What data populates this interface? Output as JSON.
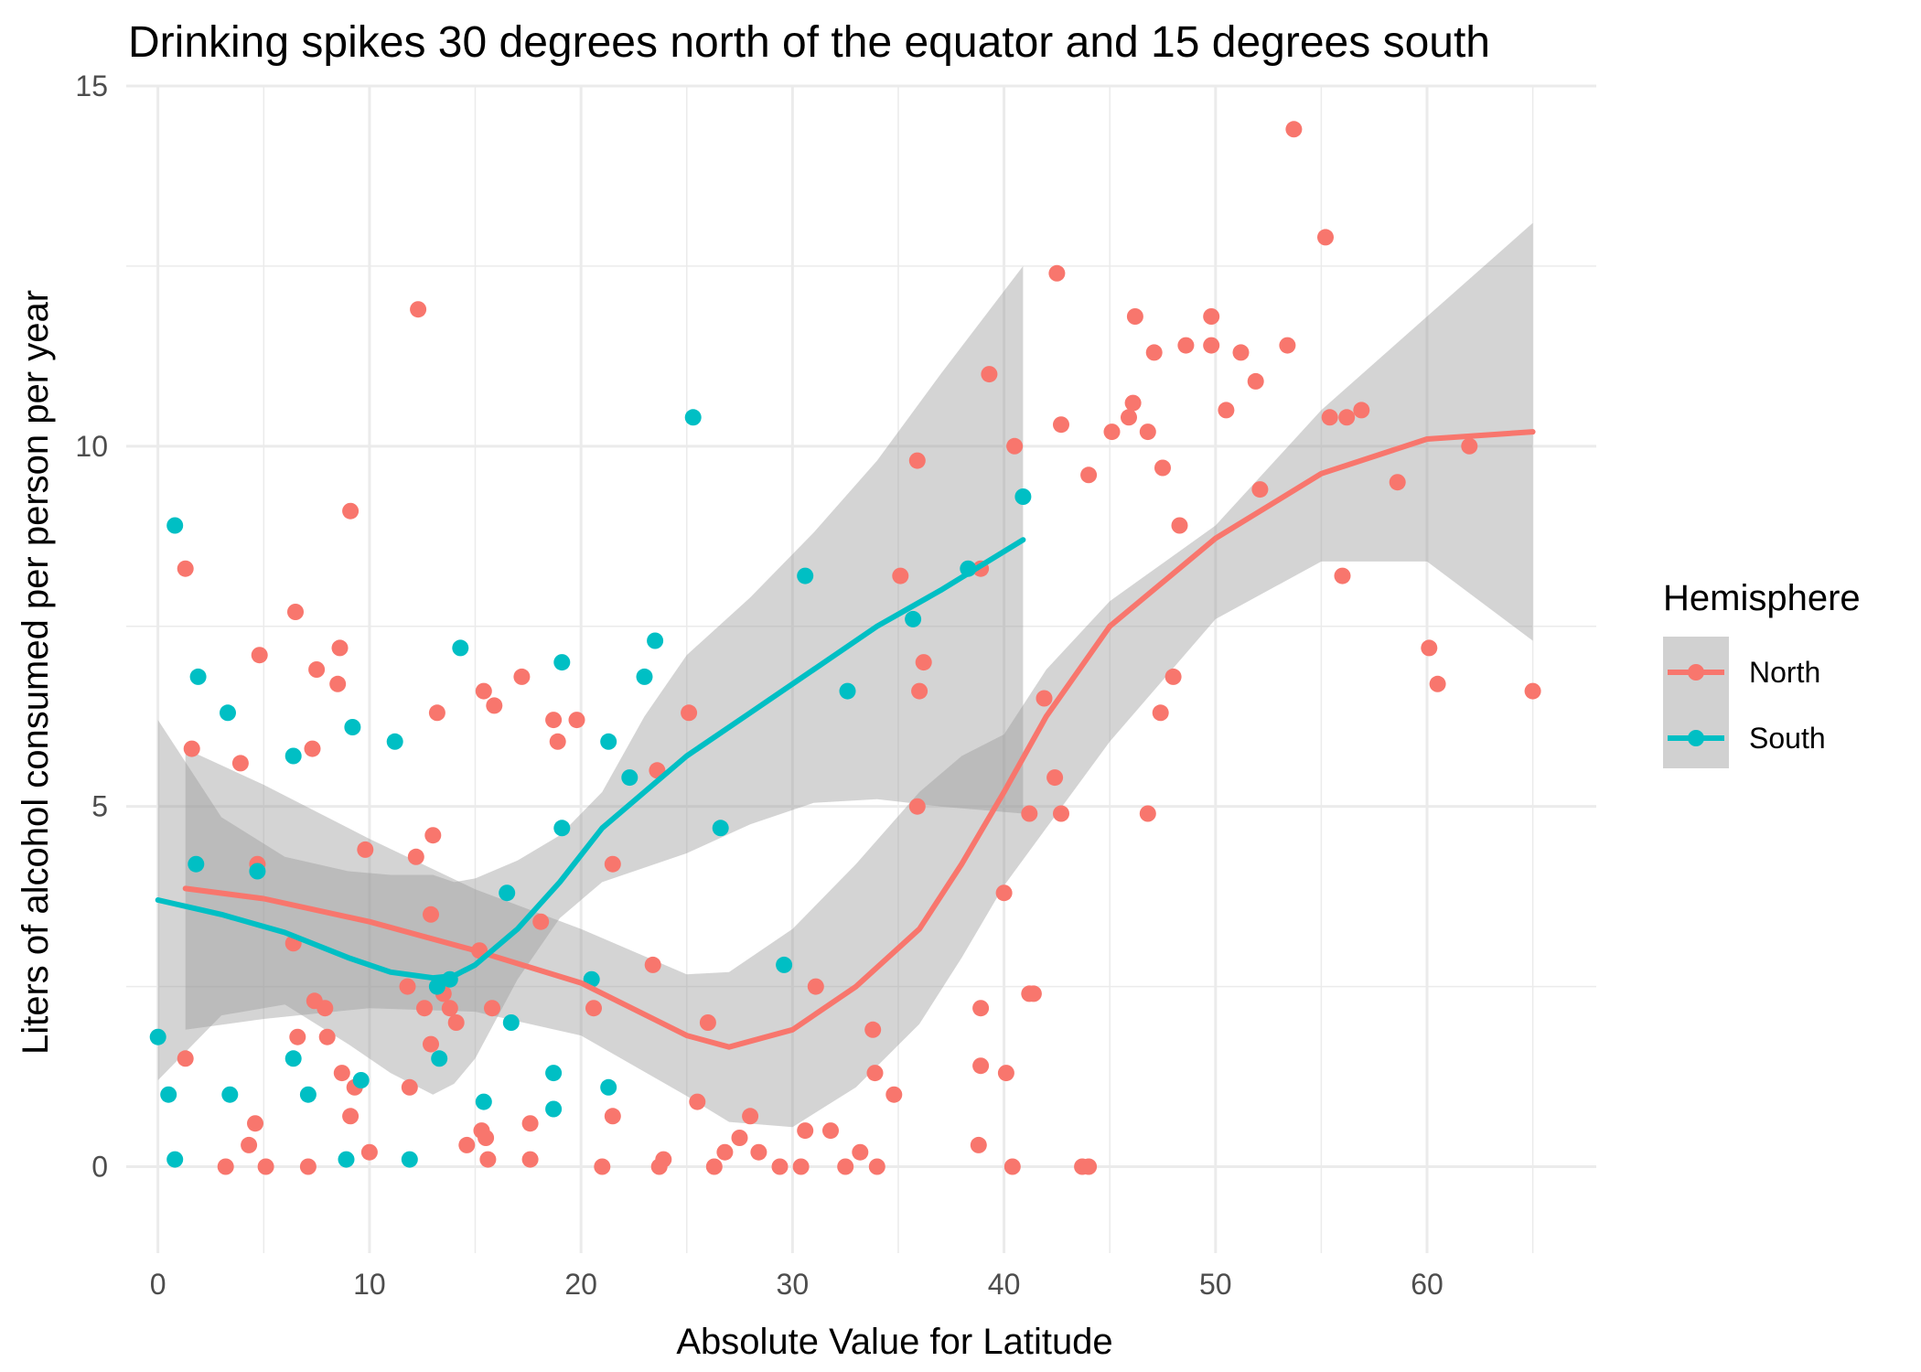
{
  "chart_data": {
    "type": "scatter",
    "title": "Drinking spikes 30 degrees north of the equator and 15 degrees south",
    "xlabel": "Absolute Value for Latitude",
    "ylabel": "Liters of alcohol consumed per person per year",
    "xlim": [
      -1.5,
      68
    ],
    "ylim": [
      -1.2,
      15.0
    ],
    "x_ticks": [
      0,
      10,
      20,
      30,
      40,
      50,
      60
    ],
    "y_ticks": [
      0,
      5,
      10,
      15
    ],
    "grid": true,
    "legend": {
      "title": "Hemisphere",
      "placement": "right",
      "entries": [
        "North",
        "South"
      ]
    },
    "colors": {
      "North": "#F8766D",
      "South": "#00BFC4",
      "ribbon": "#999999",
      "grid": "#ebebeb"
    },
    "series": [
      {
        "name": "North",
        "points": [
          [
            1.3,
            1.5
          ],
          [
            1.3,
            8.3
          ],
          [
            1.6,
            5.8
          ],
          [
            3.2,
            0.0
          ],
          [
            3.9,
            5.6
          ],
          [
            4.3,
            0.3
          ],
          [
            4.6,
            0.6
          ],
          [
            4.7,
            4.2
          ],
          [
            4.8,
            7.1
          ],
          [
            5.1,
            0.0
          ],
          [
            6.4,
            3.1
          ],
          [
            6.5,
            7.7
          ],
          [
            6.6,
            1.8
          ],
          [
            7.1,
            0.0
          ],
          [
            7.3,
            5.8
          ],
          [
            7.4,
            2.3
          ],
          [
            7.5,
            6.9
          ],
          [
            7.9,
            2.2
          ],
          [
            8.0,
            1.8
          ],
          [
            8.5,
            6.7
          ],
          [
            8.6,
            7.2
          ],
          [
            8.7,
            1.3
          ],
          [
            9.1,
            9.1
          ],
          [
            9.1,
            0.7
          ],
          [
            9.3,
            1.1
          ],
          [
            9.8,
            4.4
          ],
          [
            10.0,
            0.2
          ],
          [
            11.8,
            2.5
          ],
          [
            11.9,
            1.1
          ],
          [
            12.2,
            4.3
          ],
          [
            12.3,
            11.9
          ],
          [
            12.6,
            2.2
          ],
          [
            12.9,
            3.5
          ],
          [
            12.9,
            1.7
          ],
          [
            13.0,
            4.6
          ],
          [
            13.2,
            6.3
          ],
          [
            13.5,
            2.4
          ],
          [
            13.8,
            2.2
          ],
          [
            14.1,
            2.0
          ],
          [
            14.6,
            0.3
          ],
          [
            15.2,
            3.0
          ],
          [
            15.3,
            0.5
          ],
          [
            15.4,
            6.6
          ],
          [
            15.5,
            0.4
          ],
          [
            15.6,
            0.1
          ],
          [
            15.8,
            2.2
          ],
          [
            15.9,
            6.4
          ],
          [
            17.2,
            6.8
          ],
          [
            17.6,
            0.1
          ],
          [
            17.6,
            0.6
          ],
          [
            18.1,
            3.4
          ],
          [
            18.7,
            6.2
          ],
          [
            18.9,
            5.9
          ],
          [
            19.8,
            6.2
          ],
          [
            20.6,
            2.2
          ],
          [
            21.0,
            0.0
          ],
          [
            21.5,
            4.2
          ],
          [
            21.5,
            0.7
          ],
          [
            23.4,
            2.8
          ],
          [
            23.6,
            5.5
          ],
          [
            23.7,
            0.0
          ],
          [
            23.9,
            0.1
          ],
          [
            25.1,
            6.3
          ],
          [
            25.5,
            0.9
          ],
          [
            26.0,
            2.0
          ],
          [
            26.3,
            0.0
          ],
          [
            26.8,
            0.2
          ],
          [
            27.5,
            0.4
          ],
          [
            28.0,
            0.7
          ],
          [
            28.4,
            0.2
          ],
          [
            29.4,
            0.0
          ],
          [
            30.4,
            0.0
          ],
          [
            30.6,
            0.5
          ],
          [
            31.1,
            2.5
          ],
          [
            31.8,
            0.5
          ],
          [
            32.5,
            0.0
          ],
          [
            33.2,
            0.2
          ],
          [
            33.8,
            1.9
          ],
          [
            33.9,
            1.3
          ],
          [
            34.0,
            0.0
          ],
          [
            34.8,
            1.0
          ],
          [
            35.1,
            8.2
          ],
          [
            35.9,
            5.0
          ],
          [
            35.9,
            9.8
          ],
          [
            36.0,
            6.6
          ],
          [
            36.2,
            7.0
          ],
          [
            38.8,
            0.3
          ],
          [
            38.9,
            1.4
          ],
          [
            38.9,
            2.2
          ],
          [
            38.9,
            8.3
          ],
          [
            39.3,
            11.0
          ],
          [
            40.0,
            3.8
          ],
          [
            40.1,
            1.3
          ],
          [
            40.4,
            0.0
          ],
          [
            40.5,
            10.0
          ],
          [
            41.2,
            4.9
          ],
          [
            41.2,
            2.4
          ],
          [
            41.4,
            2.4
          ],
          [
            41.9,
            6.5
          ],
          [
            42.4,
            5.4
          ],
          [
            42.5,
            12.4
          ],
          [
            42.7,
            10.3
          ],
          [
            42.7,
            4.9
          ],
          [
            43.7,
            0.0
          ],
          [
            44.0,
            0.0
          ],
          [
            44.0,
            9.6
          ],
          [
            45.1,
            10.2
          ],
          [
            45.9,
            10.4
          ],
          [
            46.1,
            10.6
          ],
          [
            46.2,
            11.8
          ],
          [
            46.8,
            4.9
          ],
          [
            46.8,
            10.2
          ],
          [
            47.1,
            11.3
          ],
          [
            47.4,
            6.3
          ],
          [
            47.5,
            9.7
          ],
          [
            48.0,
            6.8
          ],
          [
            48.3,
            8.9
          ],
          [
            48.6,
            11.4
          ],
          [
            49.8,
            11.8
          ],
          [
            49.8,
            11.4
          ],
          [
            50.5,
            10.5
          ],
          [
            51.2,
            11.3
          ],
          [
            51.9,
            10.9
          ],
          [
            52.1,
            9.4
          ],
          [
            53.4,
            11.4
          ],
          [
            53.7,
            14.4
          ],
          [
            55.2,
            12.9
          ],
          [
            55.4,
            10.4
          ],
          [
            56.0,
            8.2
          ],
          [
            56.2,
            10.4
          ],
          [
            56.9,
            10.5
          ],
          [
            58.6,
            9.5
          ],
          [
            60.1,
            7.2
          ],
          [
            60.5,
            6.7
          ],
          [
            62.0,
            10.0
          ],
          [
            65.0,
            6.6
          ]
        ],
        "smooth": {
          "x": [
            1.3,
            5,
            10,
            15,
            20,
            25,
            27,
            30,
            33,
            36,
            38,
            40,
            42,
            45,
            50,
            55,
            60,
            65
          ],
          "y": [
            3.86,
            3.72,
            3.4,
            3.0,
            2.55,
            1.82,
            1.66,
            1.9,
            2.5,
            3.3,
            4.2,
            5.2,
            6.25,
            7.5,
            8.72,
            9.62,
            10.1,
            10.2
          ],
          "lower": [
            1.9,
            2.05,
            2.2,
            2.15,
            1.82,
            0.98,
            0.62,
            0.55,
            1.1,
            1.98,
            2.9,
            3.9,
            4.7,
            5.9,
            7.6,
            8.4,
            8.4,
            7.3
          ],
          "upper": [
            5.8,
            5.3,
            4.55,
            3.85,
            3.3,
            2.67,
            2.7,
            3.3,
            4.2,
            5.2,
            5.7,
            6.0,
            6.9,
            7.85,
            8.9,
            10.5,
            11.8,
            13.1
          ]
        }
      },
      {
        "name": "South",
        "points": [
          [
            0.0,
            1.8
          ],
          [
            0.5,
            1.0
          ],
          [
            0.8,
            0.1
          ],
          [
            0.8,
            8.9
          ],
          [
            1.8,
            4.2
          ],
          [
            1.9,
            6.8
          ],
          [
            3.3,
            6.3
          ],
          [
            3.4,
            1.0
          ],
          [
            4.7,
            4.1
          ],
          [
            6.4,
            5.7
          ],
          [
            6.4,
            1.5
          ],
          [
            7.1,
            1.0
          ],
          [
            8.9,
            0.1
          ],
          [
            9.2,
            6.1
          ],
          [
            9.6,
            1.2
          ],
          [
            11.2,
            5.9
          ],
          [
            11.9,
            0.1
          ],
          [
            13.2,
            2.5
          ],
          [
            13.3,
            1.5
          ],
          [
            13.8,
            2.6
          ],
          [
            14.3,
            7.2
          ],
          [
            15.4,
            0.9
          ],
          [
            16.5,
            3.8
          ],
          [
            16.7,
            2.0
          ],
          [
            18.7,
            1.3
          ],
          [
            18.7,
            0.8
          ],
          [
            19.1,
            4.7
          ],
          [
            19.1,
            7.0
          ],
          [
            20.5,
            2.6
          ],
          [
            21.3,
            5.9
          ],
          [
            21.3,
            1.1
          ],
          [
            22.3,
            5.4
          ],
          [
            23.0,
            6.8
          ],
          [
            23.5,
            7.3
          ],
          [
            25.3,
            10.4
          ],
          [
            26.6,
            4.7
          ],
          [
            29.6,
            2.8
          ],
          [
            30.6,
            8.2
          ],
          [
            32.6,
            6.6
          ],
          [
            35.7,
            7.6
          ],
          [
            38.3,
            8.3
          ],
          [
            40.9,
            9.3
          ]
        ],
        "smooth": {
          "x": [
            0,
            3,
            6,
            9,
            11,
            13,
            14,
            15,
            17,
            19,
            21,
            23,
            25,
            28,
            31,
            34,
            37,
            40.9
          ],
          "y": [
            3.7,
            3.5,
            3.25,
            2.9,
            2.7,
            2.62,
            2.65,
            2.8,
            3.3,
            3.95,
            4.7,
            5.2,
            5.7,
            6.3,
            6.9,
            7.5,
            8.0,
            8.7
          ],
          "lower": [
            1.2,
            2.1,
            2.25,
            1.7,
            1.3,
            1.0,
            1.15,
            1.5,
            2.6,
            3.45,
            3.95,
            4.15,
            4.35,
            4.75,
            5.05,
            5.1,
            5.0,
            4.9
          ],
          "upper": [
            6.2,
            4.85,
            4.3,
            4.1,
            4.05,
            4.05,
            3.95,
            4.0,
            4.25,
            4.6,
            5.2,
            6.25,
            7.1,
            7.9,
            8.8,
            9.8,
            11.0,
            12.5
          ]
        }
      }
    ]
  }
}
